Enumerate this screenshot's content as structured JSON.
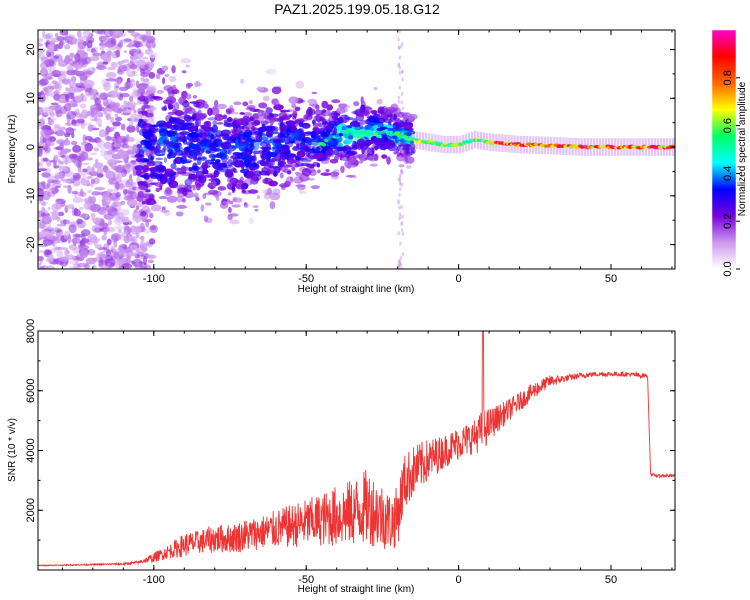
{
  "figure": {
    "title": "PAZ1.2025.199.05.18.G12"
  },
  "chart_data": [
    {
      "type": "heatmap",
      "xlabel": "Height of straight line (km)",
      "ylabel": "Frequency (Hz)",
      "xlim": [
        -138,
        71
      ],
      "ylim": [
        -25,
        24
      ],
      "xticks": [
        "-100",
        "-50",
        "0",
        "50"
      ],
      "xtick_values": [
        -100,
        -50,
        0,
        50
      ],
      "yticks": [
        "-20",
        "-10",
        "0",
        "10",
        "20"
      ],
      "ytick_values": [
        -20,
        -10,
        0,
        10,
        20
      ],
      "colorbar": {
        "label": "Normalized spectral amplitude",
        "range": [
          0,
          1
        ],
        "ticks": [
          "0.0",
          "0.2",
          "0.4",
          "0.6",
          "0.8"
        ],
        "tick_values": [
          0.0,
          0.2,
          0.4,
          0.6,
          0.8
        ],
        "colors": [
          "#ffffff",
          "#cc99ee",
          "#7700dd",
          "#0000ff",
          "#00ffff",
          "#00ff66",
          "#ffff00",
          "#ff6600",
          "#ff0000",
          "#ff00cc"
        ]
      },
      "ridge": {
        "note_units": "height km vs frequency Hz",
        "x": [
          -105,
          -95,
          -85,
          -75,
          -65,
          -55,
          -45,
          -38,
          -30,
          -25,
          -20,
          -15,
          -10,
          -5,
          0,
          5,
          10,
          20,
          30,
          40,
          50,
          60,
          71
        ],
        "y": [
          0,
          0.5,
          0,
          -1,
          0,
          1.5,
          1,
          2.5,
          3,
          3.5,
          2.5,
          1.5,
          1,
          0.5,
          0.5,
          1.5,
          1,
          0.5,
          0.3,
          0,
          0,
          0,
          0
        ]
      }
    },
    {
      "type": "line",
      "xlabel": "Height of straight line (km)",
      "ylabel": "SNR (10 * v/v)",
      "xlim": [
        -138,
        71
      ],
      "ylim": [
        0,
        8000
      ],
      "xticks": [
        "-100",
        "-50",
        "0",
        "50"
      ],
      "xtick_values": [
        -100,
        -50,
        0,
        50
      ],
      "yticks": [
        "2000",
        "4000",
        "6000",
        "8000"
      ],
      "ytick_values": [
        2000,
        4000,
        6000,
        8000
      ],
      "series": [
        {
          "color": "#ee3333",
          "x": [
            -138,
            -130,
            -120,
            -110,
            -105,
            -100,
            -95,
            -90,
            -85,
            -80,
            -75,
            -70,
            -65,
            -60,
            -55,
            -50,
            -45,
            -40,
            -35,
            -30,
            -25,
            -22,
            -20,
            -18,
            -15,
            -10,
            -5,
            0,
            5,
            8,
            10,
            15,
            20,
            25,
            30,
            35,
            40,
            45,
            50,
            55,
            60,
            62,
            63,
            65,
            71
          ],
          "y": [
            150,
            160,
            180,
            200,
            250,
            400,
            600,
            800,
            900,
            1000,
            1000,
            1100,
            1200,
            1300,
            1400,
            1500,
            1600,
            1700,
            1800,
            2000,
            1700,
            1500,
            1700,
            2800,
            3200,
            3600,
            3900,
            4200,
            4400,
            4600,
            4800,
            5200,
            5600,
            6000,
            6300,
            6400,
            6500,
            6550,
            6550,
            6550,
            6500,
            6500,
            3200,
            3150,
            3150
          ],
          "noise": [
            20,
            20,
            30,
            40,
            60,
            200,
            300,
            500,
            500,
            600,
            600,
            700,
            700,
            800,
            900,
            1000,
            1100,
            1300,
            1400,
            1600,
            1400,
            1200,
            1300,
            1200,
            1100,
            900,
            700,
            700,
            700,
            900,
            700,
            500,
            400,
            350,
            250,
            150,
            120,
            100,
            100,
            100,
            100,
            80,
            60,
            60,
            60
          ]
        }
      ]
    }
  ]
}
